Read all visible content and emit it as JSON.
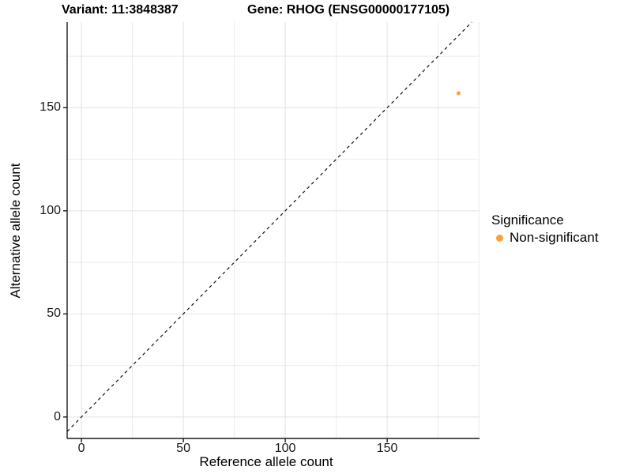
{
  "titles": {
    "variant": "Variant: 11:3848387",
    "gene": "Gene: RHOG (ENSG00000177105)"
  },
  "chart_data": {
    "type": "scatter",
    "title_left": "Variant: 11:3848387",
    "title_right": "Gene: RHOG (ENSG00000177105)",
    "xlabel": "Reference allele count",
    "ylabel": "Alternative allele count",
    "x_major_ticks": [
      0,
      50,
      100,
      150
    ],
    "y_major_ticks": [
      0,
      50,
      100,
      150
    ],
    "x_minor_ticks": [
      25,
      75,
      125,
      175,
      195
    ],
    "y_minor_ticks": [
      25,
      75,
      125,
      175
    ],
    "xlim": [
      -7,
      195.3
    ],
    "ylim": [
      -10.4,
      191.5
    ],
    "grid": true,
    "points": [
      {
        "x": 185,
        "y": 157,
        "series": "Non-significant",
        "color": "#F9A232",
        "radius": 2.5
      }
    ],
    "reference_line": {
      "type": "identity",
      "equation": "y = x",
      "style": "dashed",
      "color": "#111111"
    },
    "legend": {
      "title": "Significance",
      "position": "right",
      "items": [
        {
          "label": "Non-significant",
          "color": "#F9A232"
        }
      ]
    },
    "colors": {
      "axis": "#1a1a1a",
      "grid_major": "#e2e2e2",
      "grid_minor": "#ececec",
      "point": "#F9A232"
    }
  }
}
